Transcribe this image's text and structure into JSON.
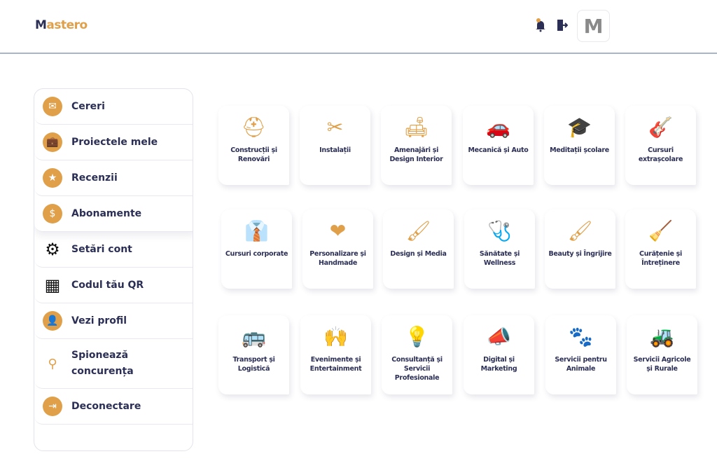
{
  "header": {
    "logo_initial": "M",
    "logo_text": "astero",
    "notification_count": "0",
    "avatar_initial": "M",
    "icons": [
      "bell-icon",
      "logout-door-icon"
    ]
  },
  "colors": {
    "accent": "#e0a04a",
    "navy": "#2b2f55"
  },
  "sidebar": {
    "items": [
      {
        "label": "Cereri",
        "icon": "✉",
        "name": "mail-icon"
      },
      {
        "label": "Proiectele mele",
        "icon": "💼",
        "name": "briefcase-icon"
      },
      {
        "label": "Recenzii",
        "icon": "★",
        "name": "review-icon"
      },
      {
        "label": "Abonamente",
        "icon": "$",
        "name": "subscription-icon"
      },
      {
        "label": "Setări cont",
        "icon": "⚙",
        "name": "gear-icon"
      },
      {
        "label": "Codul tău QR",
        "icon": "▦",
        "name": "qr-code-icon"
      },
      {
        "label": "Vezi profil",
        "icon": "👤",
        "name": "profile-icon"
      },
      {
        "label": "Spionează concurența",
        "icon": "⚲",
        "name": "search-icon"
      },
      {
        "label": "Deconectare",
        "icon": "⇥",
        "name": "logout-icon"
      }
    ]
  },
  "categories": [
    {
      "label": "Construcții și Renovări",
      "icon": "⛑"
    },
    {
      "label": "Instalații",
      "icon": "✂"
    },
    {
      "label": "Amenajări și Design Interior",
      "icon": "🛋"
    },
    {
      "label": "Mecanică și Auto",
      "icon": "🚗"
    },
    {
      "label": "Meditații școlare",
      "icon": "🎓"
    },
    {
      "label": "Cursuri extrașcolare",
      "icon": "🎸"
    },
    {
      "label": "Cursuri corporate",
      "icon": "👔"
    },
    {
      "label": "Personalizare și Handmade",
      "icon": "❤"
    },
    {
      "label": "Design și Media",
      "icon": "🖌"
    },
    {
      "label": "Sănătate și Wellness",
      "icon": "🩺"
    },
    {
      "label": "Beauty și Îngrijire",
      "icon": "🖌"
    },
    {
      "label": "Curățenie și Întreținere",
      "icon": "🧹"
    },
    {
      "label": "Transport și Logistică",
      "icon": "🚌"
    },
    {
      "label": "Evenimente și Entertainment",
      "icon": "🙌"
    },
    {
      "label": "Consultanță și Servicii Profesionale",
      "icon": "💡"
    },
    {
      "label": "Digital și Marketing",
      "icon": "📣"
    },
    {
      "label": "Servicii pentru Animale",
      "icon": "🐾"
    },
    {
      "label": "Servicii Agricole și Rurale",
      "icon": "🚜"
    }
  ]
}
